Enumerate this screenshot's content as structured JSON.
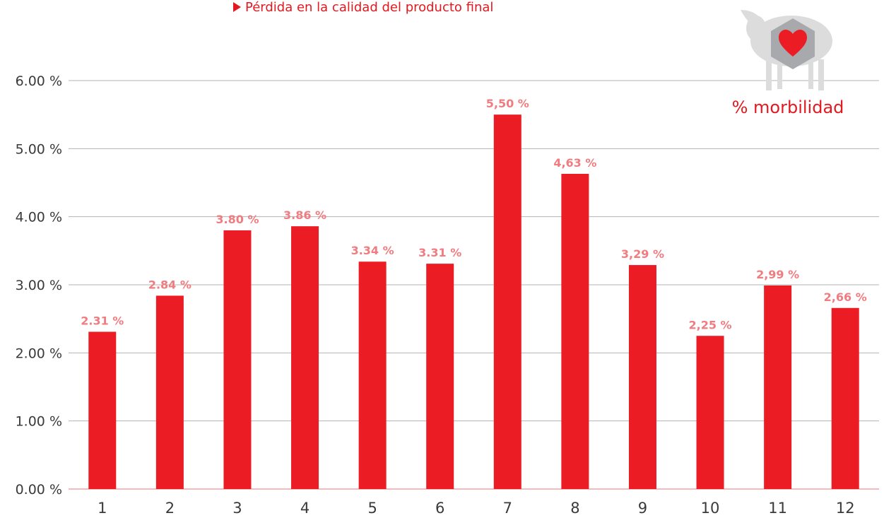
{
  "header": {
    "bullet_text": "Pérdida en la calidad del producto final"
  },
  "badge": {
    "label": "% morbilidad",
    "icon": "sheep-heart-icon"
  },
  "colors": {
    "bar": "#ec1c24",
    "data_label": "#f07c80",
    "accent": "#e3191f",
    "grid": "#b3b3b3",
    "axis_text": "#3a3a3a",
    "sheep": "#dcdcdc",
    "hexagon": "#a7a9ac"
  },
  "chart_data": {
    "type": "bar",
    "categories": [
      "1",
      "2",
      "3",
      "4",
      "5",
      "6",
      "7",
      "8",
      "9",
      "10",
      "11",
      "12"
    ],
    "values": [
      2.31,
      2.84,
      3.8,
      3.86,
      3.34,
      3.31,
      5.5,
      4.63,
      3.29,
      2.25,
      2.99,
      2.66
    ],
    "value_labels": [
      "2.31 %",
      "2.84 %",
      "3.80 %",
      "3.86 %",
      "3.34 %",
      "3.31 %",
      "5,50 %",
      "4,63 %",
      "3,29 %",
      "2,25 %",
      "2,99 %",
      "2,66 %"
    ],
    "y_ticks": [
      0,
      1,
      2,
      3,
      4,
      5,
      6
    ],
    "y_tick_labels": [
      "0.00 %",
      "1.00 %",
      "2.00 %",
      "3.00 %",
      "4.00 %",
      "5.00 %",
      "6.00 %"
    ],
    "ylim": [
      0,
      6
    ],
    "title": "",
    "xlabel": "",
    "ylabel": "",
    "grid": true,
    "legend": false
  }
}
